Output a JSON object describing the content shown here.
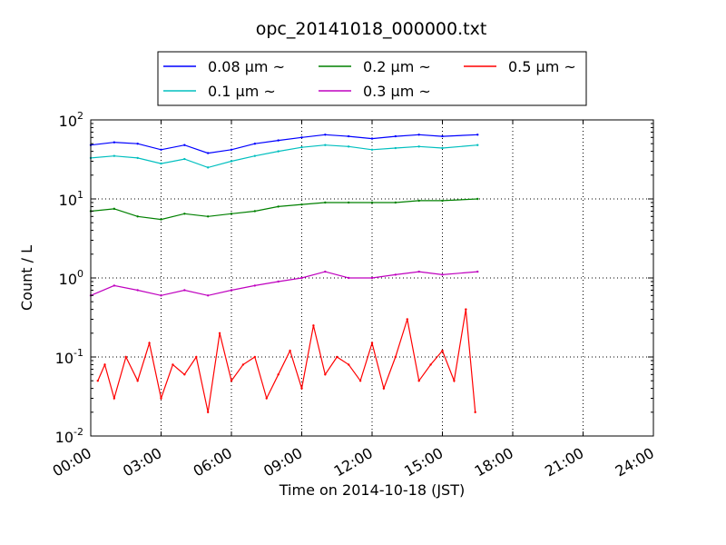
{
  "chart_data": {
    "type": "line",
    "title": "opc_20141018_000000.txt",
    "xlabel": "Time on 2014-10-18 (JST)",
    "ylabel": "Count / L",
    "x_unit": "hours (JST)",
    "xlim": [
      0,
      24
    ],
    "ylim": [
      0.01,
      100
    ],
    "yscale": "log",
    "grid": true,
    "legend_position": "top, above plot",
    "x_ticks": [
      "00:00",
      "03:00",
      "06:00",
      "09:00",
      "12:00",
      "15:00",
      "18:00",
      "21:00",
      "24:00"
    ],
    "y_ticks": [
      {
        "base": "10",
        "exp": "-2"
      },
      {
        "base": "10",
        "exp": "-1"
      },
      {
        "base": "10",
        "exp": "0"
      },
      {
        "base": "10",
        "exp": "1"
      },
      {
        "base": "10",
        "exp": "2"
      }
    ],
    "series": [
      {
        "name": "0.08 μm ~",
        "color": "#0000ff",
        "x": [
          0,
          1,
          2,
          3,
          4,
          5,
          6,
          7,
          8,
          9,
          10,
          11,
          12,
          13,
          14,
          15,
          16.5
        ],
        "y": [
          48,
          52,
          50,
          42,
          48,
          38,
          42,
          50,
          55,
          60,
          65,
          62,
          58,
          62,
          65,
          62,
          65
        ]
      },
      {
        "name": "0.1 μm ~",
        "color": "#00bfbf",
        "x": [
          0,
          1,
          2,
          3,
          4,
          5,
          6,
          7,
          8,
          9,
          10,
          11,
          12,
          13,
          14,
          15,
          16.5
        ],
        "y": [
          33,
          35,
          33,
          28,
          32,
          25,
          30,
          35,
          40,
          45,
          48,
          46,
          42,
          44,
          46,
          44,
          48
        ]
      },
      {
        "name": "0.2 μm ~",
        "color": "#008000",
        "x": [
          0,
          1,
          2,
          3,
          4,
          5,
          6,
          7,
          8,
          9,
          10,
          11,
          12,
          13,
          14,
          15,
          16.5
        ],
        "y": [
          7,
          7.5,
          6,
          5.5,
          6.5,
          6,
          6.5,
          7,
          8,
          8.5,
          9,
          9,
          9,
          9,
          9.5,
          9.5,
          10
        ]
      },
      {
        "name": "0.3 μm ~",
        "color": "#bf00bf",
        "x": [
          0,
          1,
          2,
          3,
          4,
          5,
          6,
          7,
          8,
          9,
          10,
          11,
          12,
          13,
          14,
          15,
          16.5
        ],
        "y": [
          0.6,
          0.8,
          0.7,
          0.6,
          0.7,
          0.6,
          0.7,
          0.8,
          0.9,
          1.0,
          1.2,
          1.0,
          1.0,
          1.1,
          1.2,
          1.1,
          1.2
        ]
      },
      {
        "name": "0.5 μm ~",
        "color": "#ff0000",
        "x": [
          0.3,
          0.6,
          1.0,
          1.5,
          2.0,
          2.5,
          3.0,
          3.5,
          4.0,
          4.5,
          5.0,
          5.5,
          6.0,
          6.5,
          7.0,
          7.5,
          8.0,
          8.5,
          9.0,
          9.5,
          10.0,
          10.5,
          11.0,
          11.5,
          12.0,
          12.5,
          13.0,
          13.5,
          14.0,
          14.5,
          15.0,
          15.5,
          16.0,
          16.4
        ],
        "y": [
          0.05,
          0.08,
          0.03,
          0.1,
          0.05,
          0.15,
          0.03,
          0.08,
          0.06,
          0.1,
          0.02,
          0.2,
          0.05,
          0.08,
          0.1,
          0.03,
          0.06,
          0.12,
          0.04,
          0.25,
          0.06,
          0.1,
          0.08,
          0.05,
          0.15,
          0.04,
          0.1,
          0.3,
          0.05,
          0.08,
          0.12,
          0.05,
          0.4,
          0.02
        ]
      }
    ]
  }
}
